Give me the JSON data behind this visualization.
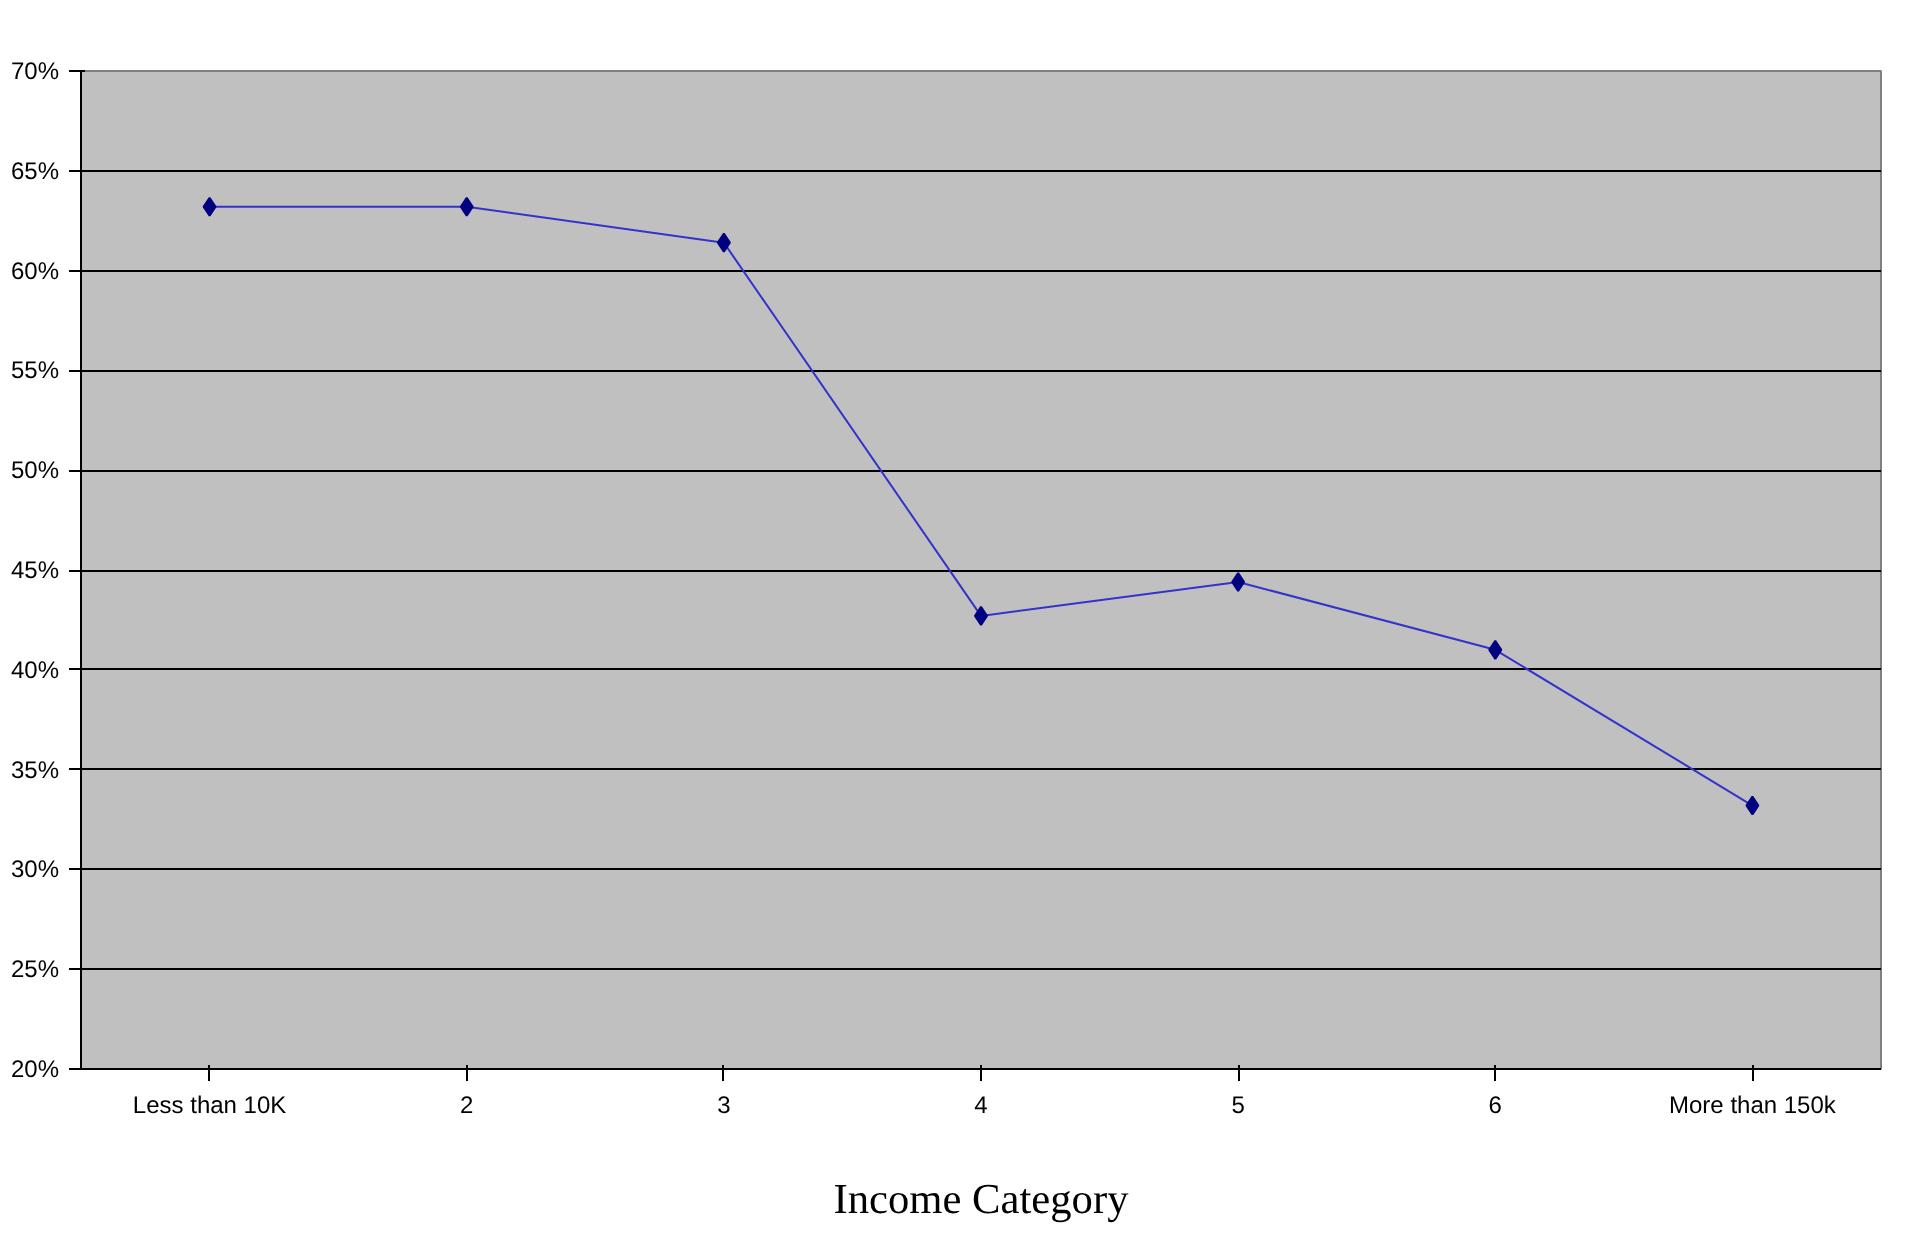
{
  "chart_data": {
    "type": "line",
    "xlabel": "Income Category",
    "categories": [
      "Less than 10K",
      "2",
      "3",
      "4",
      "5",
      "6",
      "More than 150k"
    ],
    "series": [
      {
        "color": "#000080",
        "values": [
          63.2,
          63.2,
          61.4,
          42.7,
          44.4,
          41.0,
          33.2
        ]
      }
    ],
    "ylim": [
      20,
      70
    ],
    "yticks": [
      {
        "value": 20,
        "label": "20%"
      },
      {
        "value": 25,
        "label": "25%"
      },
      {
        "value": 30,
        "label": "30%"
      },
      {
        "value": 35,
        "label": "35%"
      },
      {
        "value": 40,
        "label": "40%"
      },
      {
        "value": 45,
        "label": "45%"
      },
      {
        "value": 50,
        "label": "50%"
      },
      {
        "value": 55,
        "label": "55%"
      },
      {
        "value": 60,
        "label": "60%"
      },
      {
        "value": 65,
        "label": "65%"
      },
      {
        "value": 70,
        "label": "70%"
      }
    ],
    "grid": "y",
    "marker": "diamond",
    "line_style": "solid"
  }
}
